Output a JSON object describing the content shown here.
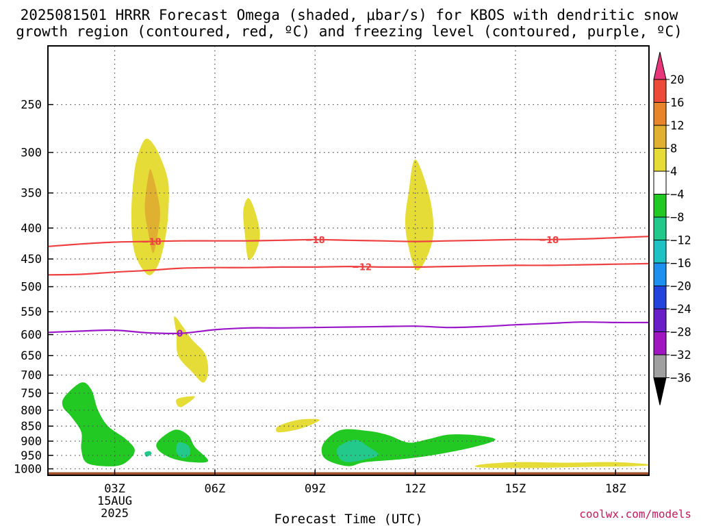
{
  "title": {
    "line1": "2025081501 HRRR Forecast Omega (shaded, μbar/s) for KBOS with dendritic snow",
    "line2": "growth region (contoured, red, ºC) and freezing level (contoured, purple, ºC)"
  },
  "credit": "coolwx.com/models",
  "chart_data": {
    "type": "time-height",
    "title": "2025081501 HRRR Forecast Omega (shaded, μbar/s) for KBOS with dendritic snow growth region (contoured, red, ºC) and freezing level (contoured, purple, ºC)",
    "xlabel": "Forecast Time (UTC)",
    "ylabel": "",
    "x_range_hours_utc_15aug2025": [
      1,
      19
    ],
    "y_scale": "log",
    "y_range_hpa": [
      1025,
      200
    ],
    "y_ticks": [
      250,
      300,
      350,
      400,
      450,
      500,
      550,
      600,
      650,
      700,
      750,
      800,
      850,
      900,
      950,
      1000
    ],
    "x_ticks": [
      {
        "hour": 3,
        "label": "03Z",
        "sub1": "15AUG",
        "sub2": "2025"
      },
      {
        "hour": 6,
        "label": "06Z"
      },
      {
        "hour": 9,
        "label": "09Z"
      },
      {
        "hour": 12,
        "label": "12Z"
      },
      {
        "hour": 15,
        "label": "15Z"
      },
      {
        "hour": 18,
        "label": "18Z"
      }
    ],
    "grid": true,
    "surface_fill": {
      "color": "#a0522d",
      "pressure_hpa": 1013
    },
    "colorbar": {
      "labels": [
        "20",
        "16",
        "12",
        "8",
        "4",
        "−4",
        "−8",
        "−12",
        "−16",
        "−20",
        "−24",
        "−28",
        "−32",
        "−36"
      ],
      "colors": [
        "#e8367a",
        "#ee4a3a",
        "#e8842a",
        "#e0b030",
        "#e6dc38",
        "#ffffff",
        "#22c922",
        "#22c98a",
        "#1fc2c2",
        "#1e90f0",
        "#2244dd",
        "#6a1ec8",
        "#a016c0",
        "#a0a0a0",
        "#000000"
      ]
    },
    "omega_regions": [
      {
        "level": 4,
        "color": "#e6dc38",
        "points": [
          [
            4.0,
            285
          ],
          [
            4.3,
            300
          ],
          [
            4.6,
            335
          ],
          [
            4.6,
            380
          ],
          [
            4.5,
            420
          ],
          [
            4.3,
            460
          ],
          [
            4.0,
            478
          ],
          [
            3.6,
            440
          ],
          [
            3.5,
            380
          ],
          [
            3.6,
            320
          ],
          [
            3.8,
            292
          ]
        ]
      },
      {
        "level": 8,
        "color": "#e0b030",
        "points": [
          [
            4.1,
            322
          ],
          [
            4.35,
            370
          ],
          [
            4.3,
            405
          ],
          [
            4.15,
            440
          ],
          [
            4.0,
            405
          ],
          [
            3.9,
            370
          ],
          [
            4.0,
            330
          ]
        ]
      },
      {
        "level": 4,
        "color": "#e6dc38",
        "points": [
          [
            7.0,
            357
          ],
          [
            7.2,
            375
          ],
          [
            7.35,
            410
          ],
          [
            7.2,
            440
          ],
          [
            7.0,
            450
          ],
          [
            6.9,
            410
          ],
          [
            6.85,
            375
          ]
        ]
      },
      {
        "level": 4,
        "color": "#e6dc38",
        "points": [
          [
            12.0,
            308
          ],
          [
            12.4,
            350
          ],
          [
            12.55,
            400
          ],
          [
            12.4,
            440
          ],
          [
            12.05,
            470
          ],
          [
            11.8,
            430
          ],
          [
            11.7,
            390
          ],
          [
            11.8,
            350
          ]
        ]
      },
      {
        "level": 4,
        "color": "#e6dc38",
        "points": [
          [
            4.8,
            560
          ],
          [
            5.3,
            610
          ],
          [
            5.7,
            645
          ],
          [
            5.8,
            690
          ],
          [
            5.65,
            720
          ],
          [
            5.3,
            690
          ],
          [
            4.9,
            650
          ],
          [
            4.85,
            600
          ]
        ]
      },
      {
        "level": 4,
        "color": "#e6dc38",
        "points": [
          [
            4.9,
            765
          ],
          [
            5.4,
            760
          ],
          [
            5.0,
            790
          ],
          [
            4.85,
            780
          ]
        ]
      },
      {
        "level": 4,
        "color": "#e6dc38",
        "points": [
          [
            7.9,
            850
          ],
          [
            8.5,
            830
          ],
          [
            9.1,
            828
          ],
          [
            9.0,
            840
          ],
          [
            8.5,
            860
          ],
          [
            7.9,
            870
          ]
        ]
      },
      {
        "level": 4,
        "color": "#e6dc38",
        "points": [
          [
            13.9,
            985
          ],
          [
            15.0,
            975
          ],
          [
            16.5,
            977
          ],
          [
            18.0,
            975
          ],
          [
            19.1,
            985
          ],
          [
            18.5,
            990
          ],
          [
            17.0,
            993
          ],
          [
            15.5,
            997
          ],
          [
            14.0,
            995
          ]
        ]
      },
      {
        "level": -4,
        "color": "#22c922",
        "points": [
          [
            1.5,
            760
          ],
          [
            2.0,
            720
          ],
          [
            2.3,
            740
          ],
          [
            2.5,
            800
          ],
          [
            2.8,
            850
          ],
          [
            3.3,
            890
          ],
          [
            3.6,
            930
          ],
          [
            3.4,
            970
          ],
          [
            3.0,
            990
          ],
          [
            2.2,
            980
          ],
          [
            2.0,
            930
          ],
          [
            2.0,
            870
          ],
          [
            1.7,
            820
          ],
          [
            1.45,
            790
          ]
        ]
      },
      {
        "level": -8,
        "color": "#22c98a",
        "points": [
          [
            3.9,
            940
          ],
          [
            4.05,
            935
          ],
          [
            4.1,
            945
          ],
          [
            3.95,
            955
          ]
        ]
      },
      {
        "level": -4,
        "color": "#22c922",
        "points": [
          [
            4.3,
            900
          ],
          [
            4.8,
            862
          ],
          [
            5.2,
            880
          ],
          [
            5.4,
            920
          ],
          [
            5.8,
            970
          ],
          [
            5.3,
            975
          ],
          [
            4.7,
            960
          ],
          [
            4.3,
            930
          ]
        ]
      },
      {
        "level": -8,
        "color": "#22c98a",
        "points": [
          [
            4.9,
            905
          ],
          [
            5.2,
            915
          ],
          [
            5.25,
            945
          ],
          [
            5.05,
            960
          ],
          [
            4.85,
            940
          ]
        ]
      },
      {
        "level": -4,
        "color": "#22c922",
        "points": [
          [
            9.3,
            900
          ],
          [
            9.8,
            862
          ],
          [
            10.6,
            866
          ],
          [
            11.2,
            880
          ],
          [
            11.8,
            905
          ],
          [
            12.4,
            893
          ],
          [
            13.0,
            878
          ],
          [
            13.8,
            880
          ],
          [
            14.4,
            895
          ],
          [
            13.7,
            922
          ],
          [
            12.5,
            950
          ],
          [
            11.5,
            965
          ],
          [
            10.5,
            975
          ],
          [
            10.0,
            990
          ],
          [
            9.4,
            970
          ],
          [
            9.2,
            940
          ]
        ]
      },
      {
        "level": -8,
        "color": "#22c98a",
        "points": [
          [
            9.7,
            920
          ],
          [
            10.2,
            895
          ],
          [
            10.6,
            920
          ],
          [
            10.9,
            948
          ],
          [
            10.5,
            965
          ],
          [
            9.95,
            975
          ],
          [
            9.7,
            955
          ]
        ]
      }
    ],
    "contours": [
      {
        "label": "-18",
        "kind": "dendritic",
        "color": "#ee4040",
        "x": [
          1,
          2,
          3,
          4,
          5,
          6,
          7,
          8,
          9,
          10,
          11,
          12,
          13,
          14,
          15,
          16,
          17,
          18,
          19
        ],
        "y": [
          429,
          425,
          422,
          421,
          420,
          420,
          420,
          419,
          418,
          419,
          420,
          421,
          420,
          419,
          418,
          418,
          417,
          415,
          413
        ],
        "label_at": [
          4.1,
          9.0,
          16.0
        ]
      },
      {
        "label": "-12",
        "kind": "dendritic",
        "color": "#ee4040",
        "x": [
          1,
          2,
          3,
          4,
          5,
          6,
          7,
          8,
          9,
          10,
          11,
          12,
          13,
          14,
          15,
          16,
          17,
          18,
          19
        ],
        "y": [
          478,
          477,
          473,
          470,
          466,
          465,
          465,
          464,
          464,
          463,
          464,
          464,
          463,
          462,
          461,
          461,
          460,
          459,
          458
        ],
        "label_at": [
          10.4
        ]
      },
      {
        "label": "0",
        "kind": "freezing",
        "color": "#9a16c8",
        "x": [
          1,
          2,
          3,
          4,
          5,
          6,
          7,
          8,
          9,
          10,
          11,
          12,
          13,
          14,
          15,
          16,
          17,
          18,
          19
        ],
        "y": [
          595,
          592,
          590,
          596,
          597,
          589,
          585,
          585,
          584,
          583,
          582,
          581,
          584,
          582,
          578,
          575,
          572,
          573,
          573
        ],
        "label_at": [
          4.95
        ]
      }
    ]
  }
}
